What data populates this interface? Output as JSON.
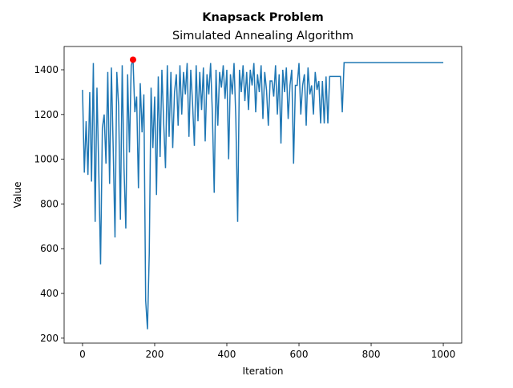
{
  "chart_data": {
    "type": "line",
    "title": "Knapsack Problem",
    "subtitle": "Simulated Annealing Algorithm",
    "x_label": "Iteration",
    "y_label": "Value",
    "xlim": [
      -51,
      1051
    ],
    "ylim": [
      178,
      1504
    ],
    "xticks": [
      0,
      200,
      400,
      600,
      800,
      1000
    ],
    "yticks": [
      200,
      400,
      600,
      800,
      1000,
      1200,
      1400
    ],
    "x": [
      0,
      5,
      10,
      15,
      20,
      25,
      30,
      35,
      40,
      45,
      50,
      55,
      60,
      65,
      70,
      75,
      80,
      85,
      90,
      95,
      100,
      105,
      110,
      115,
      120,
      125,
      130,
      135,
      140,
      145,
      150,
      155,
      160,
      165,
      170,
      175,
      180,
      185,
      190,
      195,
      200,
      205,
      210,
      215,
      220,
      225,
      230,
      235,
      240,
      245,
      250,
      255,
      260,
      265,
      270,
      275,
      280,
      285,
      290,
      295,
      300,
      305,
      310,
      315,
      320,
      325,
      330,
      335,
      340,
      345,
      350,
      355,
      360,
      365,
      370,
      375,
      380,
      385,
      390,
      395,
      400,
      405,
      410,
      415,
      420,
      425,
      430,
      435,
      440,
      445,
      450,
      455,
      460,
      465,
      470,
      475,
      480,
      485,
      490,
      495,
      500,
      505,
      510,
      515,
      520,
      525,
      530,
      535,
      540,
      545,
      550,
      555,
      560,
      565,
      570,
      575,
      580,
      585,
      590,
      595,
      600,
      605,
      610,
      615,
      620,
      625,
      630,
      635,
      640,
      645,
      650,
      655,
      660,
      665,
      670,
      675,
      680,
      685,
      690,
      695,
      700,
      705,
      710,
      715,
      720,
      725,
      1000
    ],
    "series": [
      {
        "color": "#1f77b4",
        "values": [
          1310,
          940,
          1170,
          930,
          1300,
          900,
          1430,
          720,
          1320,
          950,
          530,
          1140,
          1200,
          980,
          1390,
          890,
          1410,
          1050,
          650,
          1390,
          1240,
          730,
          1420,
          960,
          690,
          1380,
          1030,
          1420,
          1445,
          1210,
          1280,
          870,
          1340,
          1120,
          1290,
          370,
          240,
          580,
          1320,
          1050,
          1280,
          840,
          1370,
          1010,
          1400,
          1160,
          960,
          1420,
          1100,
          1390,
          1050,
          1300,
          1380,
          1150,
          1420,
          1200,
          1390,
          1290,
          1430,
          1100,
          1400,
          1250,
          1060,
          1420,
          1170,
          1390,
          1220,
          1410,
          1080,
          1380,
          1290,
          1430,
          1200,
          850,
          1400,
          1150,
          1390,
          1320,
          1420,
          1270,
          1400,
          1000,
          1380,
          1290,
          1430,
          1180,
          720,
          1400,
          1300,
          1420,
          1260,
          1390,
          1220,
          1400,
          1330,
          1430,
          1210,
          1380,
          1300,
          1420,
          1180,
          1390,
          1310,
          1150,
          1350,
          1350,
          1280,
          1420,
          1200,
          1380,
          1070,
          1400,
          1300,
          1410,
          1180,
          1330,
          1400,
          980,
          1330,
          1330,
          1430,
          1200,
          1330,
          1380,
          1150,
          1410,
          1290,
          1330,
          1200,
          1390,
          1310,
          1350,
          1160,
          1350,
          1160,
          1370,
          1160,
          1370,
          1370,
          1370,
          1370,
          1370,
          1370,
          1370,
          1210,
          1432,
          1432
        ]
      }
    ],
    "highlight": {
      "x": [
        140
      ],
      "values": [
        1445
      ],
      "color": "#ff0000"
    }
  }
}
